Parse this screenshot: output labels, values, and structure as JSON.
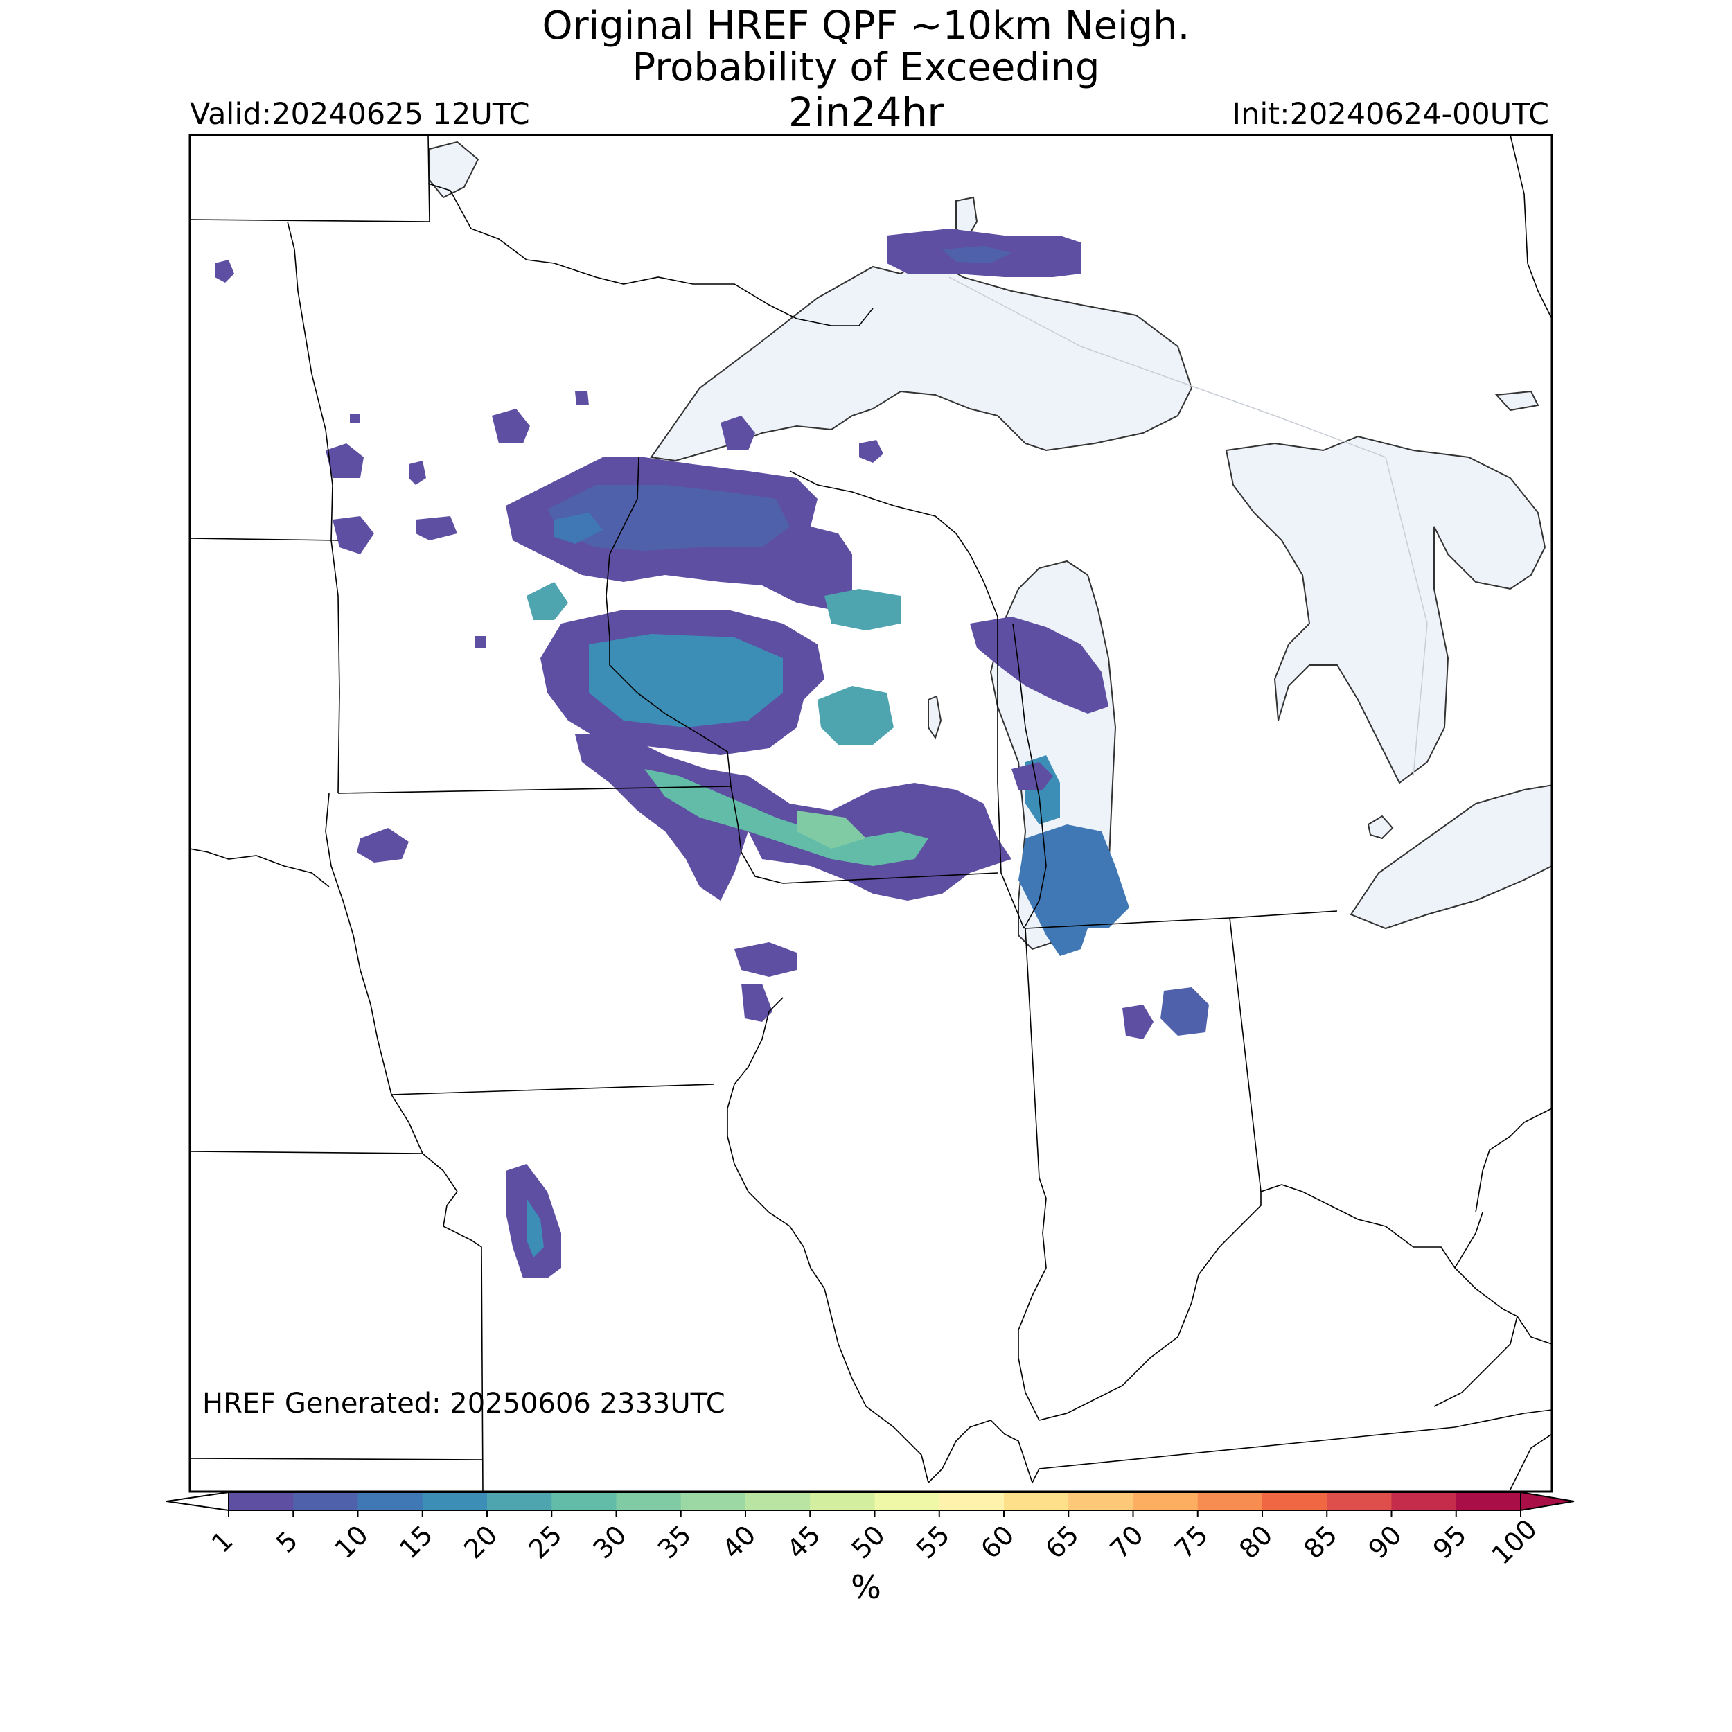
{
  "title": {
    "line1": "Original HREF QPF ~10km Neigh.",
    "line2": "Probability of Exceeding",
    "line3": "2in24hr"
  },
  "valid_label": "Valid:20240625 12UTC",
  "init_label": "Init:20240624-00UTC",
  "generated_label": "HREF Generated: 20250606 2333UTC",
  "colorbar": {
    "unit": "%",
    "ticks": [
      "1",
      "5",
      "10",
      "15",
      "20",
      "25",
      "30",
      "35",
      "40",
      "45",
      "50",
      "55",
      "60",
      "65",
      "70",
      "75",
      "80",
      "85",
      "90",
      "95",
      "100"
    ],
    "colors": [
      "#5e4fa2",
      "#4f61aa",
      "#3f78b4",
      "#3d8eb6",
      "#4ea5b0",
      "#63bca8",
      "#80cba4",
      "#9cd8a4",
      "#b9e4a1",
      "#d3ee9e",
      "#eff8a6",
      "#fff2ac",
      "#fee08b",
      "#fdc877",
      "#fdae61",
      "#f88d52",
      "#f06744",
      "#de4e4b",
      "#c52b4a",
      "#aa0e47"
    ]
  },
  "map": {
    "lake_color": "#eef3fa",
    "border_color": "#000000",
    "precip_fields": [
      {
        "value": 5,
        "region": "north-minnesota-band"
      },
      {
        "value": 15,
        "region": "central-wisconsin"
      },
      {
        "value": 25,
        "region": "southern-wisconsin-band"
      },
      {
        "value": 10,
        "region": "lower-michigan-lake-shore"
      },
      {
        "value": 5,
        "region": "indiana-cells"
      },
      {
        "value": 15,
        "region": "missouri-cell"
      },
      {
        "value": 5,
        "region": "upper-peninsula"
      }
    ]
  }
}
